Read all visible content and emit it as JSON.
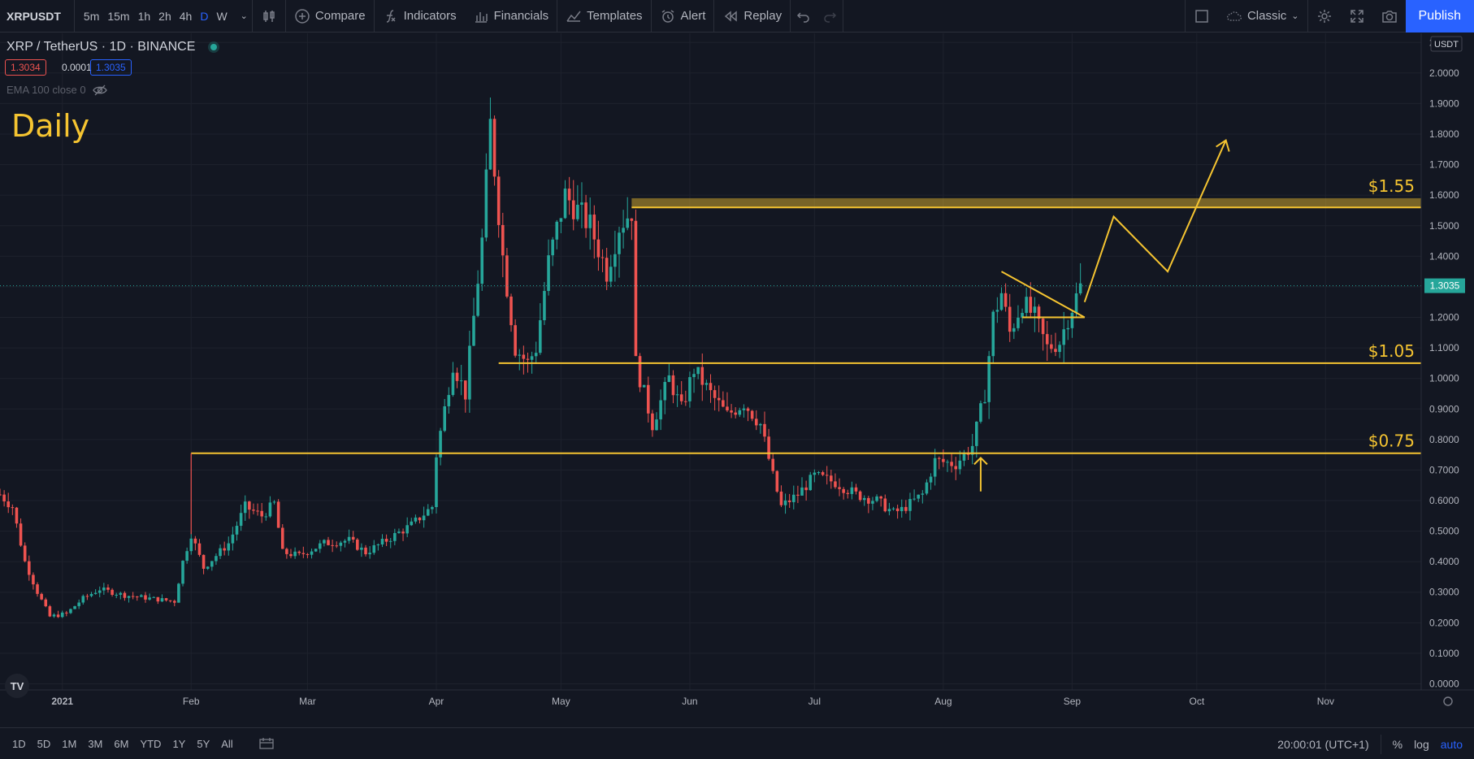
{
  "toolbar": {
    "symbol": "XRPUSDT",
    "intervals": [
      "5m",
      "15m",
      "1h",
      "2h",
      "4h",
      "D",
      "W"
    ],
    "active_interval": "D",
    "compare": "Compare",
    "indicators": "Indicators",
    "financials": "Financials",
    "templates": "Templates",
    "alert": "Alert",
    "replay": "Replay",
    "layout_name": "Classic",
    "publish": "Publish"
  },
  "legend": {
    "title": "XRP / TetherUS · 1D · BINANCE",
    "sell_price": "1.3034",
    "spread": "0.0001",
    "buy_price": "1.3035",
    "indicator": "EMA 100 close 0"
  },
  "annotations": {
    "timeframe_label": "Daily",
    "levels": [
      {
        "label": "$1.55",
        "value": 1.56
      },
      {
        "label": "$1.05",
        "value": 1.05
      },
      {
        "label": "$0.75",
        "value": 0.755
      }
    ],
    "level_color": "#f5c431"
  },
  "bottombar": {
    "ranges": [
      "1D",
      "5D",
      "1M",
      "3M",
      "6M",
      "YTD",
      "1Y",
      "5Y",
      "All"
    ],
    "time": "20:00:01 (UTC+1)",
    "percent": "%",
    "log": "log",
    "auto": "auto"
  },
  "colors": {
    "up": "#26a69a",
    "down": "#ef5350",
    "accent": "#2962ff",
    "annotation": "#f5c431",
    "background": "#131722"
  },
  "chart_data": {
    "type": "candlestick",
    "currency": "USDT",
    "current_price": "1.3035",
    "ylim": [
      -0.02,
      2.13
    ],
    "y_ticks": [
      "2.1000",
      "2.0000",
      "1.9000",
      "1.8000",
      "1.7000",
      "1.6000",
      "1.5000",
      "1.4000",
      "1.3000",
      "1.2000",
      "1.1000",
      "1.0000",
      "0.9000",
      "0.8000",
      "0.7000",
      "0.6000",
      "0.5000",
      "0.4000",
      "0.3000",
      "0.2000",
      "0.1000",
      "0.0000"
    ],
    "x_ticks": [
      {
        "label": "2021",
        "date": "2021-01-01"
      },
      {
        "label": "Feb",
        "date": "2021-02-01"
      },
      {
        "label": "Mar",
        "date": "2021-03-01"
      },
      {
        "label": "Apr",
        "date": "2021-04-01"
      },
      {
        "label": "May",
        "date": "2021-05-01"
      },
      {
        "label": "Jun",
        "date": "2021-06-01"
      },
      {
        "label": "Jul",
        "date": "2021-07-01"
      },
      {
        "label": "Aug",
        "date": "2021-08-01"
      },
      {
        "label": "Sep",
        "date": "2021-09-01"
      },
      {
        "label": "Oct",
        "date": "2021-10-01"
      },
      {
        "label": "Nov",
        "date": "2021-11-01"
      }
    ],
    "x_range": [
      "2020-12-17",
      "2021-11-24"
    ],
    "price_path": [
      [
        "2020-12-17",
        0.62
      ],
      [
        "2020-12-20",
        0.58
      ],
      [
        "2020-12-23",
        0.4
      ],
      [
        "2020-12-26",
        0.3
      ],
      [
        "2020-12-29",
        0.22
      ],
      [
        "2021-01-02",
        0.23
      ],
      [
        "2021-01-06",
        0.28
      ],
      [
        "2021-01-10",
        0.31
      ],
      [
        "2021-01-16",
        0.29
      ],
      [
        "2021-01-22",
        0.28
      ],
      [
        "2021-01-28",
        0.27
      ],
      [
        "2021-01-30",
        0.4
      ],
      [
        "2021-02-01",
        0.49
      ],
      [
        "2021-02-04",
        0.38
      ],
      [
        "2021-02-10",
        0.46
      ],
      [
        "2021-02-14",
        0.58
      ],
      [
        "2021-02-18",
        0.55
      ],
      [
        "2021-02-21",
        0.59
      ],
      [
        "2021-02-23",
        0.43
      ],
      [
        "2021-02-27",
        0.42
      ],
      [
        "2021-03-05",
        0.46
      ],
      [
        "2021-03-11",
        0.47
      ],
      [
        "2021-03-15",
        0.43
      ],
      [
        "2021-03-20",
        0.47
      ],
      [
        "2021-03-26",
        0.52
      ],
      [
        "2021-03-31",
        0.58
      ],
      [
        "2021-04-01",
        0.75
      ],
      [
        "2021-04-05",
        1.05
      ],
      [
        "2021-04-08",
        0.95
      ],
      [
        "2021-04-12",
        1.45
      ],
      [
        "2021-04-14",
        1.83
      ],
      [
        "2021-04-17",
        1.4
      ],
      [
        "2021-04-20",
        1.1
      ],
      [
        "2021-04-23",
        1.05
      ],
      [
        "2021-04-25",
        1.1
      ],
      [
        "2021-04-28",
        1.38
      ],
      [
        "2021-05-02",
        1.6
      ],
      [
        "2021-05-05",
        1.55
      ],
      [
        "2021-05-08",
        1.5
      ],
      [
        "2021-05-12",
        1.35
      ],
      [
        "2021-05-15",
        1.5
      ],
      [
        "2021-05-18",
        1.55
      ],
      [
        "2021-05-19",
        1.05
      ],
      [
        "2021-05-23",
        0.85
      ],
      [
        "2021-05-27",
        1.0
      ],
      [
        "2021-05-30",
        0.9
      ],
      [
        "2021-06-02",
        1.03
      ],
      [
        "2021-06-06",
        0.95
      ],
      [
        "2021-06-10",
        0.88
      ],
      [
        "2021-06-14",
        0.92
      ],
      [
        "2021-06-18",
        0.85
      ],
      [
        "2021-06-21",
        0.68
      ],
      [
        "2021-06-23",
        0.58
      ],
      [
        "2021-06-27",
        0.62
      ],
      [
        "2021-07-01",
        0.68
      ],
      [
        "2021-07-06",
        0.66
      ],
      [
        "2021-07-11",
        0.62
      ],
      [
        "2021-07-16",
        0.6
      ],
      [
        "2021-07-20",
        0.56
      ],
      [
        "2021-07-22",
        0.57
      ],
      [
        "2021-07-27",
        0.62
      ],
      [
        "2021-07-30",
        0.73
      ],
      [
        "2021-08-04",
        0.72
      ],
      [
        "2021-08-08",
        0.78
      ],
      [
        "2021-08-11",
        0.95
      ],
      [
        "2021-08-13",
        1.2
      ],
      [
        "2021-08-15",
        1.28
      ],
      [
        "2021-08-17",
        1.15
      ],
      [
        "2021-08-20",
        1.25
      ],
      [
        "2021-08-23",
        1.2
      ],
      [
        "2021-08-26",
        1.1
      ],
      [
        "2021-08-29",
        1.12
      ],
      [
        "2021-08-31",
        1.2
      ],
      [
        "2021-09-03",
        1.3
      ]
    ]
  }
}
